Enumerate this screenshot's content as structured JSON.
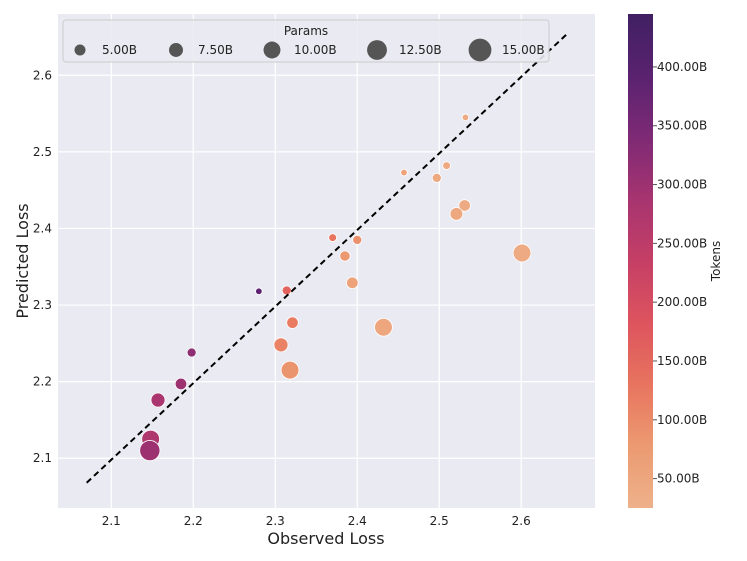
{
  "chart_data": {
    "type": "scatter",
    "title": "",
    "xlabel": "Observed Loss",
    "ylabel": "Predicted Loss",
    "xlim": [
      2.035,
      2.69
    ],
    "ylim": [
      2.035,
      2.68
    ],
    "xticks": [
      2.1,
      2.2,
      2.3,
      2.4,
      2.5,
      2.6
    ],
    "yticks": [
      2.1,
      2.2,
      2.3,
      2.4,
      2.5,
      2.6
    ],
    "xtick_labels": [
      "2.1",
      "2.2",
      "2.3",
      "2.4",
      "2.5",
      "2.6"
    ],
    "ytick_labels": [
      "2.1",
      "2.2",
      "2.3",
      "2.4",
      "2.5",
      "2.6"
    ],
    "grid": true,
    "reference_line": {
      "style": "dashed",
      "x": [
        2.07,
        2.655
      ],
      "y": [
        2.068,
        2.653
      ]
    },
    "size_legend": {
      "title": "Params",
      "placement": "top-left",
      "entries": [
        {
          "label": "5.00B",
          "value": 5
        },
        {
          "label": "7.50B",
          "value": 7.5
        },
        {
          "label": "10.00B",
          "value": 10
        },
        {
          "label": "12.50B",
          "value": 12.5
        },
        {
          "label": "15.00B",
          "value": 15
        }
      ]
    },
    "colorbar": {
      "label": "Tokens",
      "range": [
        25,
        445
      ],
      "ticks": [
        50,
        100,
        150,
        200,
        250,
        300,
        350,
        400
      ],
      "tick_labels": [
        "50.00B",
        "100.00B",
        "150.00B",
        "200.00B",
        "250.00B",
        "300.00B",
        "350.00B",
        "400.00B"
      ]
    },
    "points": [
      {
        "observed": 2.532,
        "predicted": 2.545,
        "params": 1,
        "tokens": 40
      },
      {
        "observed": 2.457,
        "predicted": 2.473,
        "params": 1,
        "tokens": 60
      },
      {
        "observed": 2.509,
        "predicted": 2.482,
        "params": 2,
        "tokens": 40
      },
      {
        "observed": 2.497,
        "predicted": 2.466,
        "params": 3,
        "tokens": 45
      },
      {
        "observed": 2.531,
        "predicted": 2.43,
        "params": 5,
        "tokens": 40
      },
      {
        "observed": 2.521,
        "predicted": 2.419,
        "params": 6,
        "tokens": 45
      },
      {
        "observed": 2.601,
        "predicted": 2.368,
        "params": 10,
        "tokens": 40
      },
      {
        "observed": 2.37,
        "predicted": 2.388,
        "params": 2,
        "tokens": 130
      },
      {
        "observed": 2.4,
        "predicted": 2.385,
        "params": 3,
        "tokens": 90
      },
      {
        "observed": 2.385,
        "predicted": 2.364,
        "params": 4,
        "tokens": 80
      },
      {
        "observed": 2.394,
        "predicted": 2.329,
        "params": 5,
        "tokens": 60
      },
      {
        "observed": 2.432,
        "predicted": 2.271,
        "params": 10,
        "tokens": 50
      },
      {
        "observed": 2.28,
        "predicted": 2.318,
        "params": 1,
        "tokens": 390
      },
      {
        "observed": 2.314,
        "predicted": 2.319,
        "params": 3,
        "tokens": 160
      },
      {
        "observed": 2.321,
        "predicted": 2.277,
        "params": 5,
        "tokens": 120
      },
      {
        "observed": 2.307,
        "predicted": 2.248,
        "params": 7,
        "tokens": 110
      },
      {
        "observed": 2.318,
        "predicted": 2.215,
        "params": 10,
        "tokens": 85
      },
      {
        "observed": 2.198,
        "predicted": 2.238,
        "params": 3,
        "tokens": 320
      },
      {
        "observed": 2.185,
        "predicted": 2.197,
        "params": 5,
        "tokens": 300
      },
      {
        "observed": 2.157,
        "predicted": 2.176,
        "params": 7,
        "tokens": 280
      },
      {
        "observed": 2.148,
        "predicted": 2.125,
        "params": 10,
        "tokens": 275
      },
      {
        "observed": 2.147,
        "predicted": 2.11,
        "params": 12,
        "tokens": 300
      }
    ]
  },
  "colors": {
    "background": "#EAEAF2",
    "grid": "#FFFFFF",
    "reference_line": "#000000",
    "legend_marker": "#555555",
    "colormap": [
      "#EEB18A",
      "#EC9A71",
      "#E8745F",
      "#DD545E",
      "#C53F66",
      "#A73470",
      "#7E2A75",
      "#5A2270",
      "#402062"
    ]
  }
}
